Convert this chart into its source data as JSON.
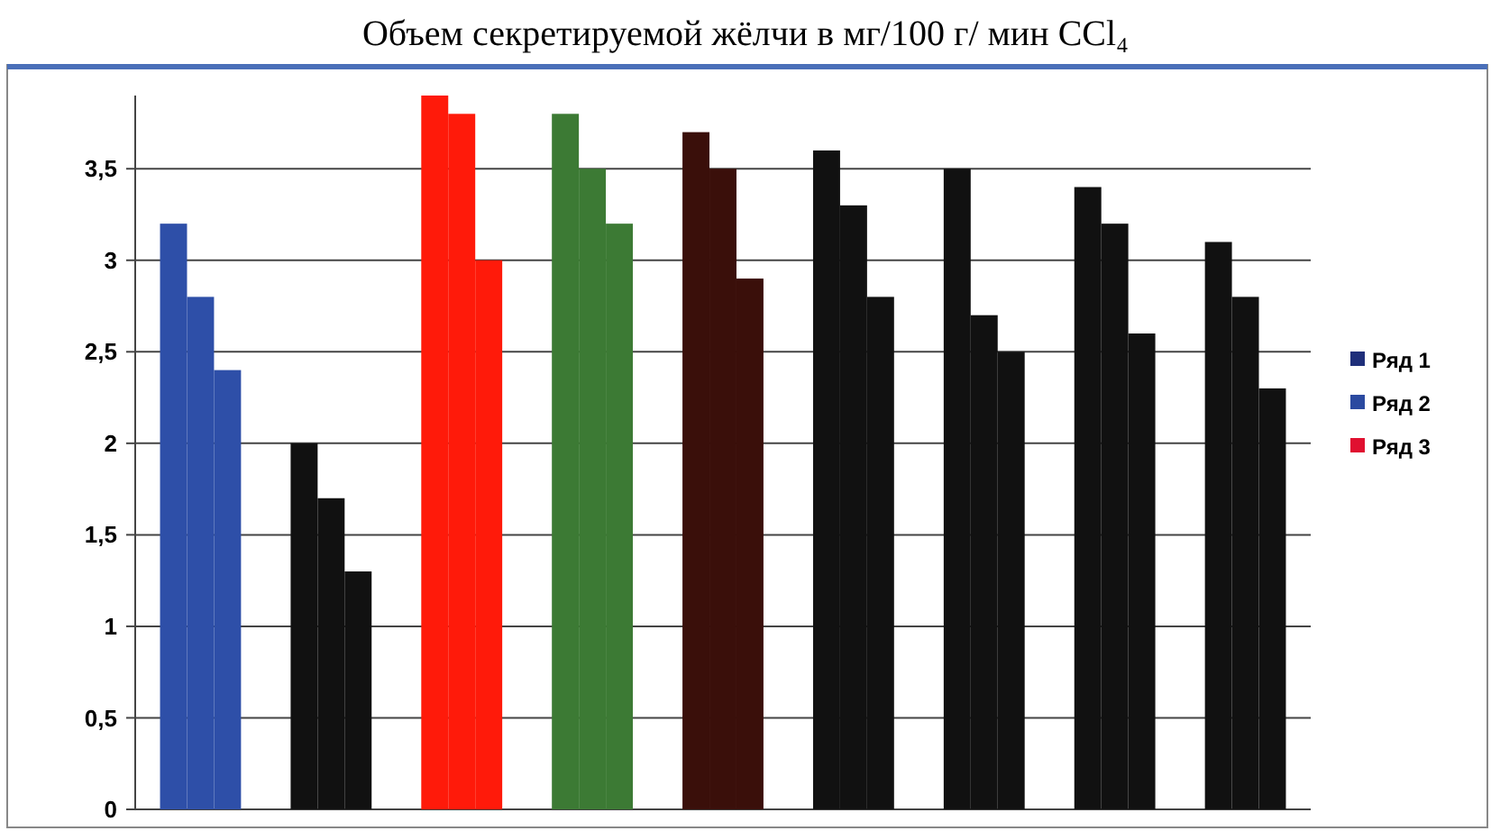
{
  "chart_data": {
    "type": "bar",
    "title": "Объем секретируемой жёлчи в мг/100 г/ мин CCl₄",
    "categories": [
      null,
      null,
      null,
      null,
      null,
      null,
      null,
      null,
      null
    ],
    "series": [
      {
        "name": "Ряд 1",
        "color": "#1f2f7a",
        "colors": [
          "#2e4fa8",
          "#111111",
          "#ff1a0a",
          "#3c7a34",
          "#3a0f0a",
          "#111111",
          "#111111",
          "#111111",
          "#111111"
        ],
        "values": [
          3.2,
          2.0,
          3.9,
          3.8,
          3.7,
          3.6,
          3.5,
          3.4,
          3.1
        ]
      },
      {
        "name": "Ряд 2",
        "color": "#2b4aa0",
        "colors": [
          "#2e4fa8",
          "#111111",
          "#ff1a0a",
          "#3c7a34",
          "#3a0f0a",
          "#111111",
          "#111111",
          "#111111",
          "#111111"
        ],
        "values": [
          2.8,
          1.7,
          3.8,
          3.5,
          3.5,
          3.3,
          2.7,
          3.2,
          2.8
        ]
      },
      {
        "name": "Ряд 3",
        "color": "#e01030",
        "colors": [
          "#2e4fa8",
          "#111111",
          "#ff1a0a",
          "#3c7a34",
          "#3a0f0a",
          "#111111",
          "#111111",
          "#111111",
          "#111111"
        ],
        "values": [
          2.4,
          1.3,
          3.0,
          3.2,
          2.9,
          2.8,
          2.5,
          2.6,
          2.3
        ]
      }
    ],
    "ylim": [
      0,
      3.9
    ],
    "yticks": [
      {
        "value": 0,
        "label": "0"
      },
      {
        "value": 0.5,
        "label": "0,5"
      },
      {
        "value": 1,
        "label": "1"
      },
      {
        "value": 1.5,
        "label": "1,5"
      },
      {
        "value": 2,
        "label": "2"
      },
      {
        "value": 2.5,
        "label": "2,5"
      },
      {
        "value": 3,
        "label": "3"
      },
      {
        "value": 3.5,
        "label": "3,5"
      }
    ],
    "grid": "y",
    "legend": "right"
  }
}
